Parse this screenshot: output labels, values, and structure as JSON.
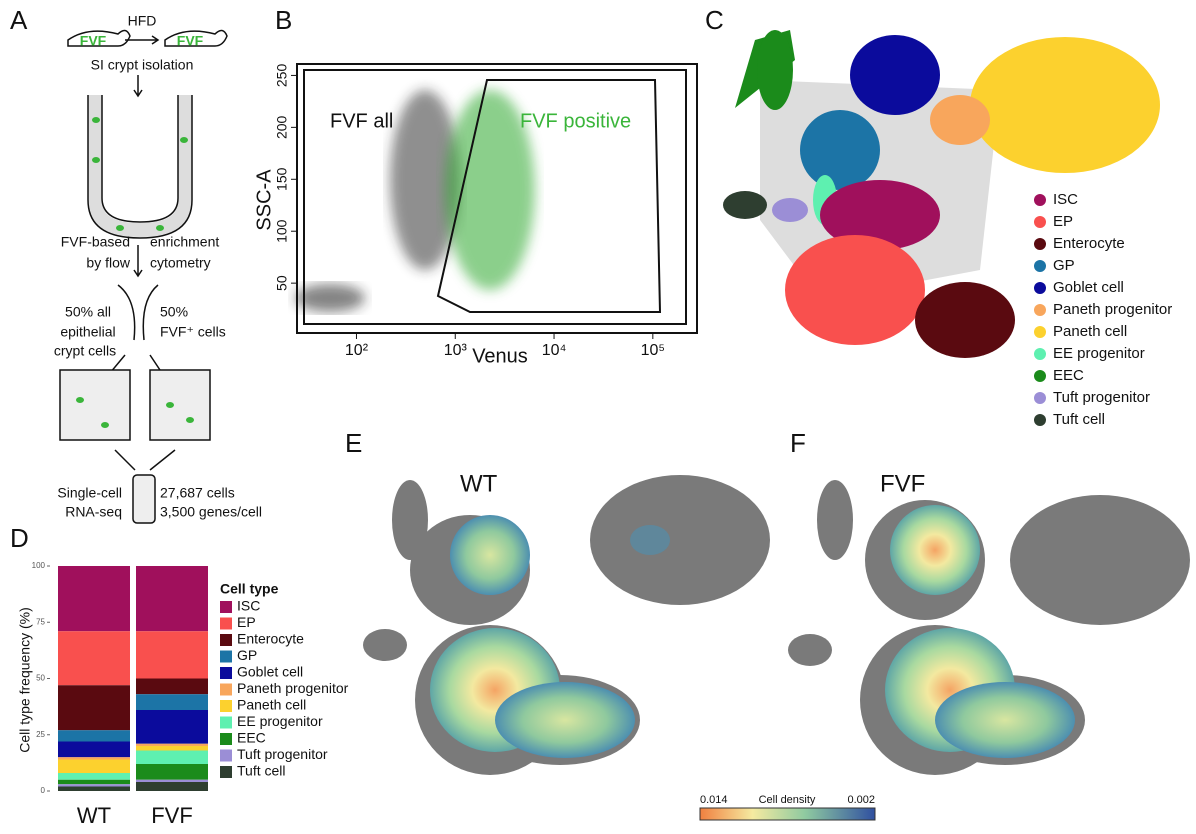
{
  "panels": {
    "letters": [
      "A",
      "B",
      "C",
      "D",
      "E",
      "F"
    ],
    "a": {
      "treatment": "HFD",
      "mouse_label": "FVF",
      "isolation": "SI crypt isolation",
      "enrichment": [
        "FVF-based",
        "enrichment",
        "by flow",
        "cytometry"
      ],
      "left_fraction": [
        "50% all",
        "epithelial",
        "crypt cells"
      ],
      "right_fraction": [
        "50%",
        "FVF⁺ cells"
      ],
      "method": [
        "Single-cell",
        "RNA-seq"
      ],
      "stats": [
        "27,687 cells",
        "3,500 genes/cell"
      ]
    },
    "e": {
      "title": "WT"
    },
    "f": {
      "title": "FVF"
    },
    "colorbar": {
      "low": "0.014",
      "title": "Cell density",
      "high": "0.002"
    }
  },
  "chart_data": [
    {
      "type": "gate",
      "xlabel": "Venus",
      "ylabel": "SSC-A",
      "xscale": "log",
      "xlim": [
        25,
        280000
      ],
      "ylim": [
        2,
        261
      ],
      "xticks": [
        {
          "value": 100,
          "label": "10²"
        },
        {
          "value": 1000,
          "label": "10³"
        },
        {
          "value": 10000,
          "label": "10⁴"
        },
        {
          "value": 100000,
          "label": "10⁵"
        }
      ],
      "yticks": [
        50,
        100,
        150,
        200,
        250
      ],
      "annotations": [
        "FVF all",
        "FVF positive"
      ]
    },
    {
      "type": "stacked_bar",
      "ylabel": "Cell type frequency (%)",
      "legend_title": "Cell type",
      "categories": [
        "WT",
        "FVF"
      ],
      "ylim": [
        0,
        100
      ],
      "yticks": [
        0,
        25,
        50,
        75,
        100
      ],
      "series": [
        {
          "name": "ISC",
          "color": "#a0105c",
          "values": [
            29,
            29
          ]
        },
        {
          "name": "EP",
          "color": "#f9504e",
          "values": [
            24,
            21
          ]
        },
        {
          "name": "Enterocyte",
          "color": "#5a0a10",
          "values": [
            20,
            7
          ]
        },
        {
          "name": "GP",
          "color": "#1c74a6",
          "values": [
            5,
            7
          ]
        },
        {
          "name": "Goblet cell",
          "color": "#0b0b9c",
          "values": [
            7,
            15
          ]
        },
        {
          "name": "Paneth progenitor",
          "color": "#f8a65c",
          "values": [
            1,
            1
          ]
        },
        {
          "name": "Paneth cell",
          "color": "#fcd12e",
          "values": [
            6,
            2
          ]
        },
        {
          "name": "EE progenitor",
          "color": "#5ef0b0",
          "values": [
            3,
            6
          ]
        },
        {
          "name": "EEC",
          "color": "#1b8b1b",
          "values": [
            2,
            7
          ]
        },
        {
          "name": "Tuft progenitor",
          "color": "#9b8ed6",
          "values": [
            1,
            1
          ]
        },
        {
          "name": "Tuft cell",
          "color": "#2e3e30",
          "values": [
            2,
            4
          ]
        }
      ]
    }
  ]
}
